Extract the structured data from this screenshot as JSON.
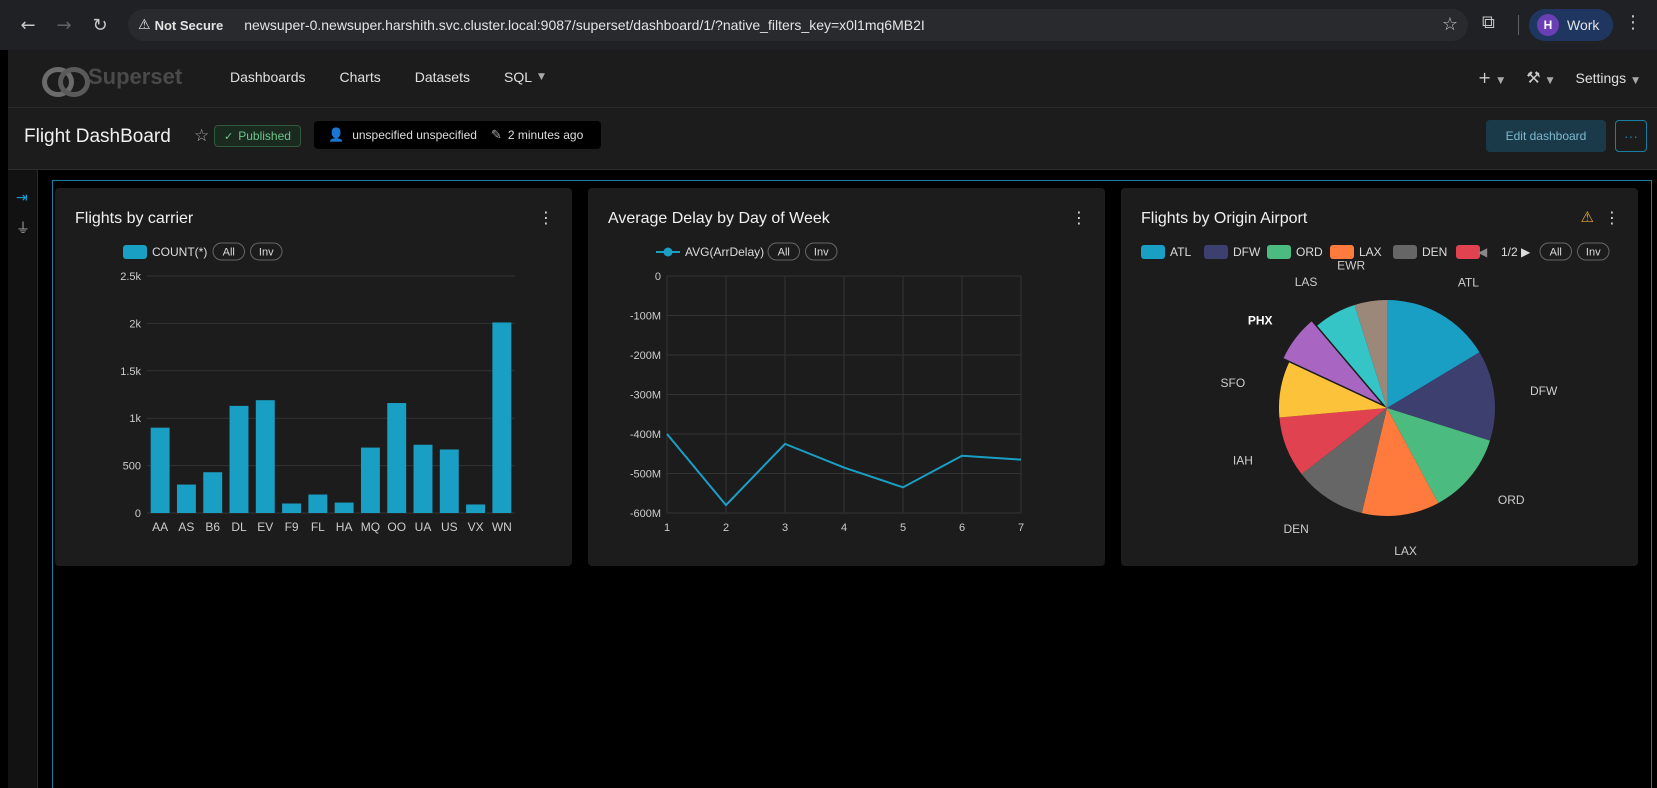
{
  "browser": {
    "not_secure": "Not Secure",
    "url": "newsuper-0.newsuper.harshith.svc.cluster.local:9087/superset/dashboard/1/?native_filters_key=x0l1mq6MB2I",
    "profile_initial": "H",
    "profile_name": "Work"
  },
  "nav": {
    "brand": "Superset",
    "items": [
      "Dashboards",
      "Charts",
      "Datasets",
      "SQL"
    ],
    "settings": "Settings"
  },
  "dashboard": {
    "title": "Flight DashBoard",
    "status": "Published",
    "owner": "unspecified unspecified",
    "modified": "2 minutes ago",
    "edit_label": "Edit dashboard",
    "more_label": "···"
  },
  "legend_controls": {
    "all": "All",
    "inv": "Inv"
  },
  "charts": {
    "carrier": {
      "title": "Flights by carrier",
      "chart_data": {
        "type": "bar",
        "series_name": "COUNT(*)",
        "categories": [
          "AA",
          "AS",
          "B6",
          "DL",
          "EV",
          "F9",
          "FL",
          "HA",
          "MQ",
          "OO",
          "UA",
          "US",
          "VX",
          "WN"
        ],
        "values": [
          900,
          300,
          430,
          1130,
          1190,
          100,
          195,
          110,
          690,
          1160,
          720,
          670,
          90,
          2010
        ],
        "ylim": [
          0,
          2500
        ],
        "yticks": [
          0,
          500,
          1000,
          1500,
          2000,
          2500
        ],
        "ytick_labels": [
          "0",
          "500",
          "1k",
          "1.5k",
          "2k",
          "2.5k"
        ],
        "color": "#1a9fc4"
      }
    },
    "delay": {
      "title": "Average Delay by Day of Week",
      "chart_data": {
        "type": "line",
        "series_name": "AVG(ArrDelay)",
        "x": [
          1,
          2,
          3,
          4,
          5,
          6,
          7
        ],
        "values": [
          -400,
          -580,
          -425,
          -485,
          -535,
          -455,
          -465
        ],
        "ylim": [
          -600,
          0
        ],
        "yticks": [
          0,
          -100,
          -200,
          -300,
          -400,
          -500,
          -600
        ],
        "ytick_labels": [
          "0",
          "-100M",
          "-200M",
          "-300M",
          "-400M",
          "-500M",
          "-600M"
        ],
        "color": "#1a9fc4"
      }
    },
    "origin": {
      "title": "Flights by Origin Airport",
      "page_label": "1/2",
      "legend": [
        "ATL",
        "DFW",
        "ORD",
        "LAX",
        "DEN",
        ""
      ],
      "chart_data": {
        "type": "pie",
        "labels": [
          "ATL",
          "DFW",
          "ORD",
          "LAX",
          "DEN",
          "IAH",
          "SFO",
          "PHX",
          "LAS",
          "EWR"
        ],
        "values": [
          15.5,
          12.8,
          11.6,
          11.0,
          10.2,
          8.6,
          7.9,
          6.5,
          6.0,
          4.6
        ],
        "colors": [
          "#1a9fc4",
          "#3d3f6e",
          "#4cbb7f",
          "#ff7a3d",
          "#666666",
          "#e0424f",
          "#fcc23a",
          "#a865c2",
          "#35c5c6",
          "#9b8878"
        ]
      }
    }
  }
}
